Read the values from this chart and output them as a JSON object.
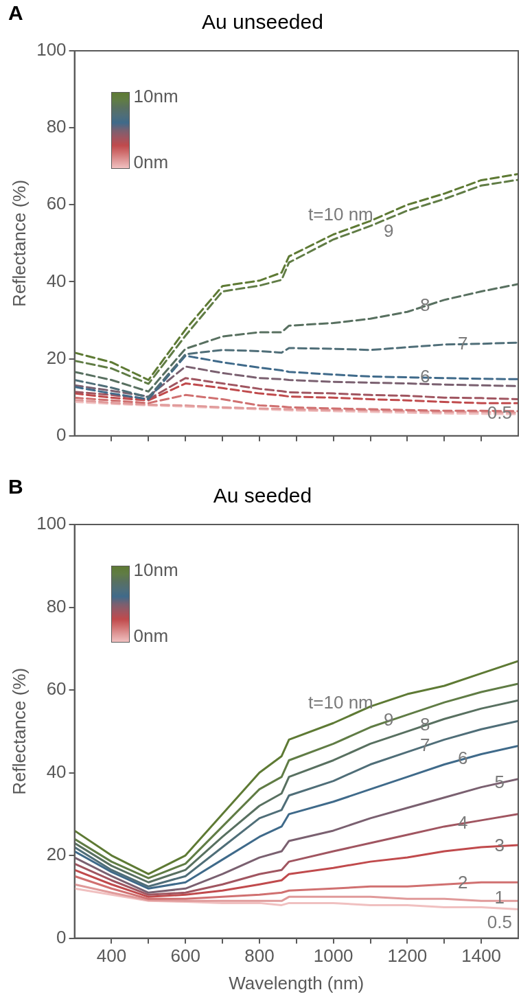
{
  "chart_data": [
    {
      "type": "line",
      "title": "Au unseeded",
      "ylabel": "Reflectance (%)",
      "annotations": [
        "A",
        "10nm",
        "0nm"
      ],
      "x": [
        300,
        400,
        500,
        600,
        700,
        800,
        860,
        880,
        1000,
        1100,
        1200,
        1300,
        1400,
        1500
      ],
      "series": [
        {
          "name": "t=10 nm",
          "color": "#5e7a34",
          "values": [
            21.6,
            19.1,
            14.5,
            27.6,
            38.9,
            40.3,
            42.4,
            46.6,
            52.3,
            55.8,
            60,
            62.9,
            66.4,
            68
          ]
        },
        {
          "name": "9",
          "color": "#607c45",
          "values": [
            19.5,
            17.5,
            13.5,
            26,
            37.5,
            39,
            40.5,
            45,
            51,
            54.5,
            58.5,
            61.5,
            65,
            66.5
          ]
        },
        {
          "name": "8",
          "color": "#587060",
          "values": [
            16.6,
            14.5,
            11.5,
            22.6,
            25.8,
            26.9,
            26.9,
            28.6,
            29.3,
            30.4,
            32.2,
            35.3,
            37.5,
            39.4
          ]
        },
        {
          "name": "7",
          "color": "#4f6e78",
          "values": [
            14.5,
            12.5,
            10,
            21.2,
            22.3,
            22,
            21.6,
            22.8,
            22.6,
            22.3,
            23,
            23.7,
            23.9,
            24.2
          ]
        },
        {
          "name": "6",
          "color": "#3f6a8a",
          "values": [
            12.7,
            11,
            9.5,
            20.8,
            19.1,
            17.7,
            17,
            16.6,
            15.9,
            15.4,
            15.2,
            15,
            14.8,
            14.7
          ]
        },
        {
          "color": "#7a6070",
          "values": [
            13.1,
            11.7,
            10.2,
            18,
            16.3,
            15,
            14.7,
            14.5,
            14,
            13.8,
            13.6,
            13.3,
            13.1,
            12.9
          ]
        },
        {
          "color": "#a05560",
          "values": [
            11.4,
            10.6,
            9.5,
            15,
            13.6,
            12.2,
            11.6,
            11.3,
            11,
            10.6,
            10.4,
            9.9,
            9.8,
            9.5
          ]
        },
        {
          "color": "#c04a4c",
          "values": [
            11,
            9.9,
            9.2,
            13.6,
            12.4,
            11,
            10.5,
            10.2,
            9.9,
            9.5,
            9.2,
            8.8,
            8.5,
            8.5
          ]
        },
        {
          "color": "#d07070",
          "values": [
            9.9,
            9.2,
            8.5,
            10.6,
            9.5,
            7.9,
            7.6,
            7.4,
            7.1,
            6.9,
            6.7,
            6.5,
            6.5,
            6.4
          ]
        },
        {
          "color": "#e09a9a",
          "values": [
            9.3,
            8.6,
            8.1,
            7.9,
            7.4,
            7.1,
            7,
            6.9,
            6.7,
            6.6,
            6.4,
            6.2,
            6.2,
            6
          ]
        },
        {
          "name": "0.5",
          "color": "#f0c0c0",
          "values": [
            8.8,
            8.3,
            7.9,
            7.6,
            7.2,
            6.9,
            6.7,
            6.6,
            6.4,
            6.2,
            6,
            5.8,
            5.7,
            5.6
          ]
        }
      ],
      "xlim": [
        300,
        1500
      ],
      "ylim": [
        0,
        100
      ],
      "xticks": [
        {
          "value": 400,
          "label": null
        },
        {
          "value": 500,
          "label": null
        },
        {
          "value": 600,
          "label": null
        },
        {
          "value": 700,
          "label": null
        },
        {
          "value": 800,
          "label": null
        },
        {
          "value": 900,
          "label": null
        },
        {
          "value": 1000,
          "label": null
        },
        {
          "value": 1100,
          "label": null
        },
        {
          "value": 1200,
          "label": null
        },
        {
          "value": 1300,
          "label": null
        },
        {
          "value": 1400,
          "label": null
        }
      ],
      "yticks": [
        0,
        20,
        40,
        60,
        80,
        100
      ],
      "tick_labels": "y",
      "line_style": "dashed"
    },
    {
      "type": "line",
      "title": "Au seeded",
      "xlabel": "Wavelength (nm)",
      "ylabel": "Reflectance (%)",
      "annotations": [
        "B",
        "10nm",
        "0nm"
      ],
      "x": [
        300,
        400,
        500,
        600,
        700,
        800,
        860,
        880,
        1000,
        1100,
        1200,
        1300,
        1400,
        1500
      ],
      "series": [
        {
          "name": "t=10 nm",
          "color": "#5e7a34",
          "values": [
            26,
            20,
            15.5,
            20,
            30,
            40,
            44,
            48,
            52,
            56,
            59,
            61,
            64,
            67
          ]
        },
        {
          "name": "9",
          "color": "#607c45",
          "values": [
            24,
            18.5,
            14.5,
            18,
            27,
            36,
            39,
            43,
            47,
            51,
            54,
            57,
            59.5,
            61.5
          ]
        },
        {
          "name": "8",
          "color": "#587060",
          "values": [
            23,
            17.5,
            13.5,
            16.5,
            24.5,
            32,
            35,
            39,
            43,
            47,
            50,
            53,
            55.5,
            57.5
          ]
        },
        {
          "name": "7",
          "color": "#4f6e78",
          "values": [
            22,
            16.5,
            12.5,
            15,
            22,
            29,
            31,
            34.5,
            38,
            42,
            45,
            48,
            50.5,
            52.5
          ]
        },
        {
          "name": "6",
          "color": "#3f6a8a",
          "values": [
            21,
            16,
            12,
            13.5,
            19,
            24.5,
            27,
            30,
            33,
            36,
            39,
            42,
            44.5,
            46.5
          ]
        },
        {
          "name": "5",
          "color": "#7a6070",
          "values": [
            19.5,
            15,
            11,
            12,
            15.5,
            19.5,
            21,
            23.5,
            26,
            29,
            31.5,
            34,
            36.5,
            38.5
          ]
        },
        {
          "name": "4",
          "color": "#a05560",
          "values": [
            18,
            14,
            10.5,
            11,
            13,
            15.5,
            16.5,
            18.5,
            21,
            23,
            25,
            27,
            28.5,
            30
          ]
        },
        {
          "name": "3",
          "color": "#c04a4c",
          "values": [
            16.5,
            13,
            10,
            10.5,
            11.5,
            13,
            14,
            15.5,
            17,
            18.5,
            19.5,
            21,
            22,
            22.5
          ]
        },
        {
          "name": "2",
          "color": "#d07070",
          "values": [
            15,
            12,
            9.5,
            9.5,
            10,
            10.5,
            11,
            11.5,
            12,
            12.5,
            12.5,
            13,
            13.5,
            13.5
          ]
        },
        {
          "name": "1",
          "color": "#e09a9a",
          "values": [
            13,
            11,
            9.2,
            9,
            9,
            9,
            9,
            10,
            10,
            10,
            9.5,
            9.5,
            9,
            9
          ]
        },
        {
          "name": "0.5",
          "color": "#f0c0c0",
          "values": [
            12,
            10.5,
            9,
            8.8,
            8.5,
            8.5,
            8,
            8.5,
            8.5,
            8,
            8,
            7.5,
            7.5,
            7
          ]
        }
      ],
      "xlim": [
        300,
        1500
      ],
      "ylim": [
        0,
        100
      ],
      "xticks": [
        400,
        {
          "value": 500,
          "label": null
        },
        600,
        {
          "value": 700,
          "label": null
        },
        800,
        {
          "value": 900,
          "label": null
        },
        1000,
        {
          "value": 1100,
          "label": null
        },
        1200,
        {
          "value": 1300,
          "label": null
        },
        1400
      ],
      "yticks": [
        0,
        20,
        40,
        60,
        80,
        100
      ],
      "line_style": "solid"
    }
  ]
}
